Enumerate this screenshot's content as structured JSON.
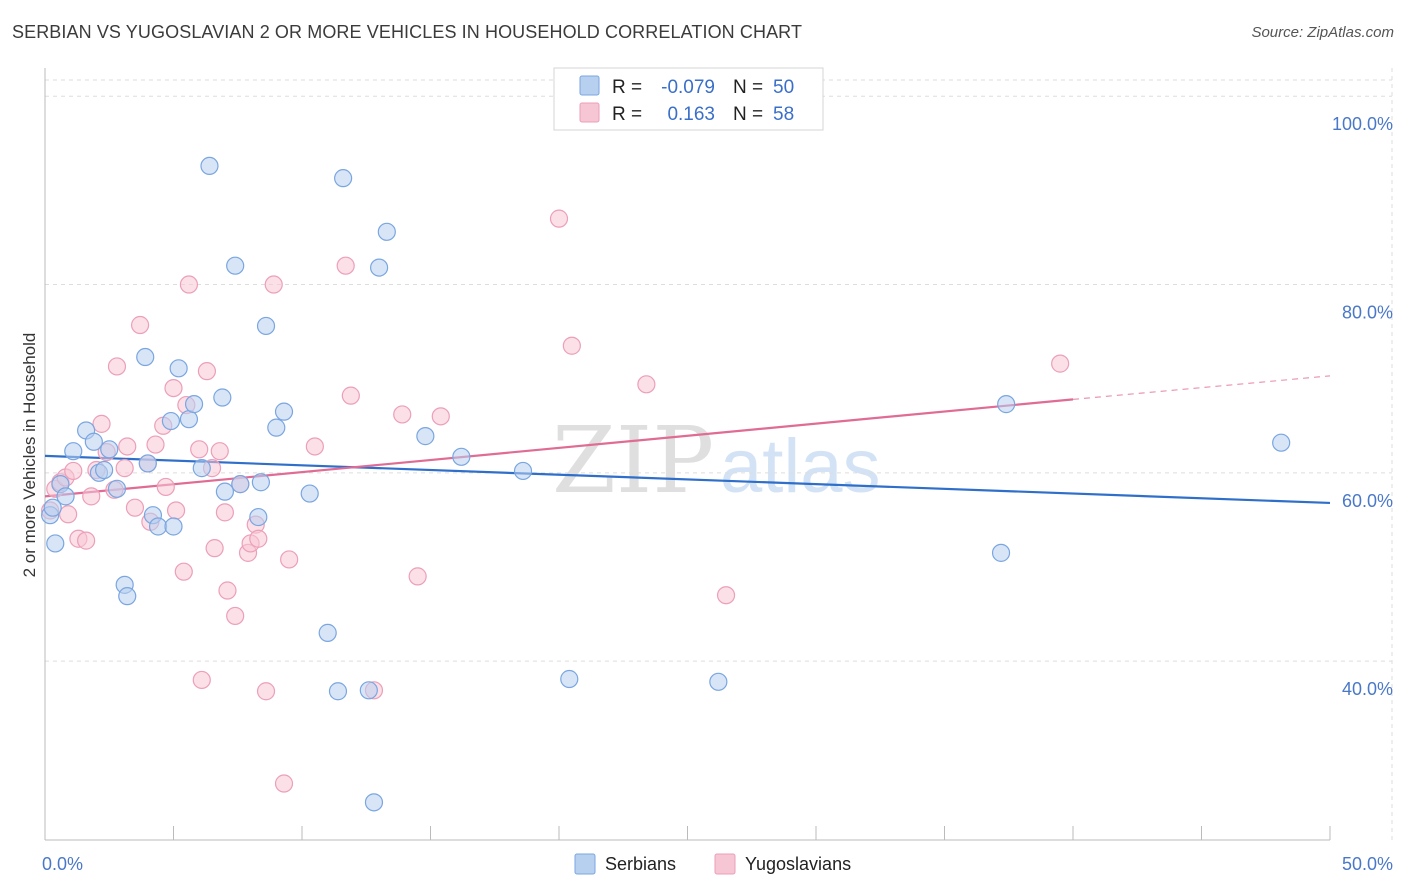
{
  "title": "SERBIAN VS YUGOSLAVIAN 2 OR MORE VEHICLES IN HOUSEHOLD CORRELATION CHART",
  "source": "Source: ZipAtlas.com",
  "watermark": {
    "zip": "ZIP",
    "atlas": "atlas"
  },
  "colors": {
    "serbians_fill": "#b8d0f0",
    "serbians_stroke": "#7aa6e0",
    "serbians_line": "#2f6fca",
    "yugoslavians_fill": "#f7c6d5",
    "yugoslavians_stroke": "#ec9fb8",
    "yugoslavians_line": "#e06b94",
    "grid": "#dddddd",
    "tick_text": "#4a78c8"
  },
  "legend": {
    "rows": [
      {
        "r_label": "R =",
        "r_value": "-0.079",
        "n_label": "N =",
        "n_value": "50"
      },
      {
        "r_label": "R =",
        "r_value": "0.163",
        "n_label": "N =",
        "n_value": "58"
      }
    ]
  },
  "chart_data": {
    "type": "scatter",
    "title": "SERBIAN VS YUGOSLAVIAN 2 OR MORE VEHICLES IN HOUSEHOLD CORRELATION CHART",
    "xlabel": "",
    "ylabel": "2 or more Vehicles in Household",
    "xlim": [
      0,
      50
    ],
    "ylim": [
      21,
      103
    ],
    "x_tick_labels": [
      "0.0%",
      "50.0%"
    ],
    "y_ticks": [
      40,
      60,
      80,
      100
    ],
    "y_tick_labels": [
      "40.0%",
      "60.0%",
      "80.0%",
      "100.0%"
    ],
    "grid": true,
    "legend_position": "top-center",
    "series": [
      {
        "name": "Serbians",
        "r": -0.079,
        "n": 50,
        "trend": {
          "x": [
            0,
            50
          ],
          "y": [
            61.8,
            56.8
          ]
        },
        "points": [
          [
            0.2,
            55.5
          ],
          [
            0.4,
            52.5
          ],
          [
            0.6,
            58.8
          ],
          [
            0.8,
            57.5
          ],
          [
            1.1,
            62.3
          ],
          [
            1.6,
            64.5
          ],
          [
            1.9,
            63.3
          ],
          [
            2.1,
            60.0
          ],
          [
            2.3,
            60.3
          ],
          [
            2.5,
            62.5
          ],
          [
            2.8,
            58.3
          ],
          [
            3.1,
            48.1
          ],
          [
            3.2,
            46.9
          ],
          [
            3.9,
            72.3
          ],
          [
            4.0,
            61.0
          ],
          [
            4.2,
            55.5
          ],
          [
            4.4,
            54.3
          ],
          [
            4.9,
            65.5
          ],
          [
            5.0,
            54.3
          ],
          [
            5.2,
            71.1
          ],
          [
            5.6,
            65.7
          ],
          [
            5.8,
            67.3
          ],
          [
            6.1,
            60.5
          ],
          [
            6.4,
            92.6
          ],
          [
            6.9,
            68.0
          ],
          [
            7.0,
            58.0
          ],
          [
            7.4,
            82.0
          ],
          [
            7.6,
            58.8
          ],
          [
            8.3,
            55.3
          ],
          [
            8.4,
            59.0
          ],
          [
            8.6,
            75.6
          ],
          [
            9.0,
            64.8
          ],
          [
            9.3,
            66.5
          ],
          [
            10.3,
            57.8
          ],
          [
            11.0,
            43.0
          ],
          [
            11.4,
            36.8
          ],
          [
            11.6,
            91.3
          ],
          [
            12.6,
            36.9
          ],
          [
            12.8,
            25.0
          ],
          [
            13.0,
            81.8
          ],
          [
            13.3,
            85.6
          ],
          [
            14.8,
            63.9
          ],
          [
            16.2,
            61.7
          ],
          [
            18.6,
            60.2
          ],
          [
            20.4,
            38.1
          ],
          [
            26.2,
            37.8
          ],
          [
            37.2,
            51.5
          ],
          [
            37.4,
            67.3
          ],
          [
            48.1,
            63.2
          ],
          [
            0.3,
            56.3
          ]
        ]
      },
      {
        "name": "Yugoslavians",
        "r": 0.163,
        "n": 58,
        "trend": {
          "x": [
            0,
            40
          ],
          "y": [
            57.5,
            67.8
          ]
        },
        "trend_dashed": {
          "x": [
            40,
            50
          ],
          "y": [
            67.8,
            70.3
          ]
        },
        "points": [
          [
            0.2,
            56.0
          ],
          [
            0.4,
            58.3
          ],
          [
            0.6,
            59.0
          ],
          [
            0.8,
            59.5
          ],
          [
            0.9,
            55.6
          ],
          [
            1.1,
            60.2
          ],
          [
            1.3,
            53.0
          ],
          [
            1.6,
            52.8
          ],
          [
            1.8,
            57.5
          ],
          [
            2.0,
            60.3
          ],
          [
            2.2,
            65.2
          ],
          [
            2.4,
            62.2
          ],
          [
            2.7,
            58.2
          ],
          [
            2.8,
            71.3
          ],
          [
            3.1,
            60.5
          ],
          [
            3.2,
            62.8
          ],
          [
            3.5,
            56.3
          ],
          [
            3.7,
            75.7
          ],
          [
            4.0,
            61.0
          ],
          [
            4.1,
            54.8
          ],
          [
            4.3,
            63.0
          ],
          [
            4.6,
            65.0
          ],
          [
            4.7,
            58.5
          ],
          [
            5.0,
            69.0
          ],
          [
            5.1,
            56.0
          ],
          [
            5.4,
            49.5
          ],
          [
            5.5,
            67.2
          ],
          [
            5.6,
            80.0
          ],
          [
            6.0,
            62.5
          ],
          [
            6.1,
            38.0
          ],
          [
            6.3,
            70.8
          ],
          [
            6.5,
            60.5
          ],
          [
            6.6,
            52.0
          ],
          [
            6.8,
            62.3
          ],
          [
            7.0,
            55.8
          ],
          [
            7.1,
            47.5
          ],
          [
            7.4,
            44.8
          ],
          [
            7.6,
            58.8
          ],
          [
            7.9,
            51.5
          ],
          [
            8.0,
            52.5
          ],
          [
            8.2,
            54.5
          ],
          [
            8.3,
            53.0
          ],
          [
            8.6,
            36.8
          ],
          [
            8.9,
            80.0
          ],
          [
            9.3,
            27.0
          ],
          [
            9.5,
            50.8
          ],
          [
            10.5,
            62.8
          ],
          [
            11.7,
            82.0
          ],
          [
            11.9,
            68.2
          ],
          [
            12.8,
            36.9
          ],
          [
            13.9,
            66.2
          ],
          [
            14.5,
            49.0
          ],
          [
            15.4,
            66.0
          ],
          [
            20.0,
            87.0
          ],
          [
            20.5,
            73.5
          ],
          [
            23.4,
            69.4
          ],
          [
            26.5,
            47.0
          ],
          [
            39.5,
            71.6
          ]
        ]
      }
    ]
  }
}
